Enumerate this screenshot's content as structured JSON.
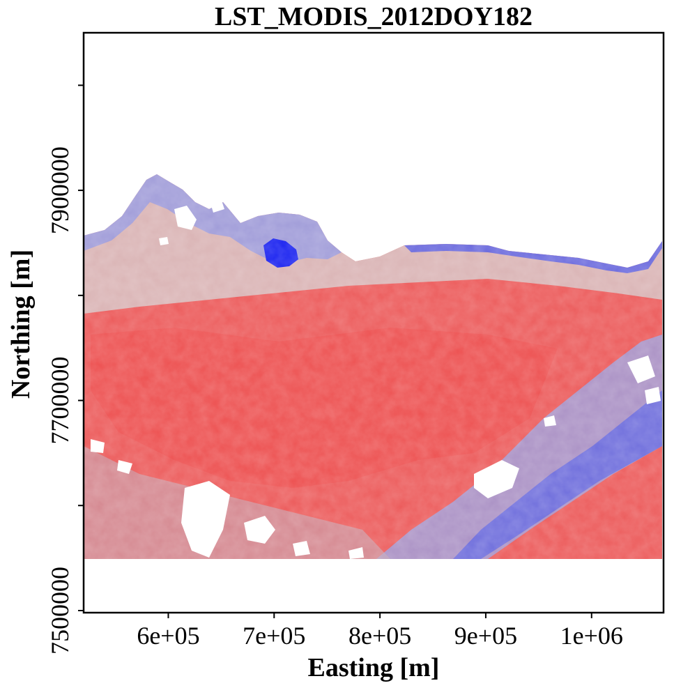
{
  "map": {
    "title": "LST_MODIS_2012DOY182",
    "xlabel": "Easting [m]",
    "ylabel": "Northing [m]",
    "x_ticks": [
      {
        "value": 600000,
        "label": "6e+05"
      },
      {
        "value": 700000,
        "label": "7e+05"
      },
      {
        "value": 800000,
        "label": "8e+05"
      },
      {
        "value": 900000,
        "label": "9e+05"
      },
      {
        "value": 1000000,
        "label": "1e+06"
      }
    ],
    "y_ticks": [
      {
        "value": 7500000,
        "label": "7500000"
      },
      {
        "value": 7600000,
        "label": ""
      },
      {
        "value": 7700000,
        "label": "7700000"
      },
      {
        "value": 7800000,
        "label": ""
      },
      {
        "value": 7900000,
        "label": "7900000"
      },
      {
        "value": 8000000,
        "label": ""
      }
    ],
    "xlim": [
      520000,
      1068000
    ],
    "ylim": [
      7498000,
      8050000
    ],
    "colors": {
      "warm": "#ee4444",
      "neutral": "#d3d3d3",
      "cold": "#1a28f0",
      "nodata": "#ffffff"
    }
  }
}
